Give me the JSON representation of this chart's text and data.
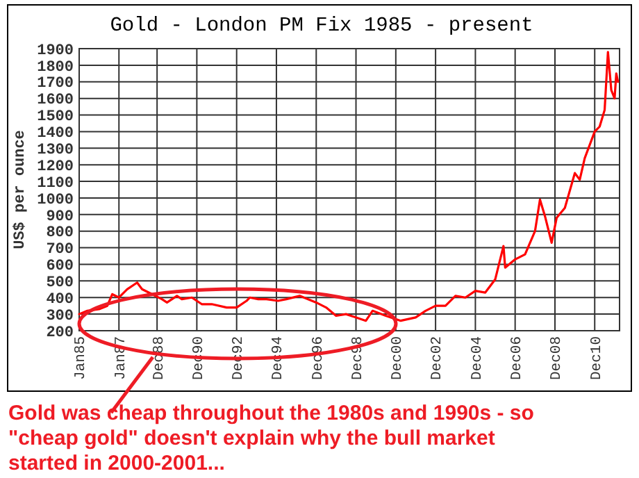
{
  "chart_data": {
    "type": "line",
    "title": "Gold - London PM Fix 1985 - present",
    "ylabel": "US$ per ounce",
    "annotations": [
      "Gold was cheap throughout the 1980s and 1990s - so \"cheap gold\" doesn't explain why the bull market started in 2000-2001..."
    ],
    "x": [
      "1985-01",
      "1985-06",
      "1986-01",
      "1986-06",
      "1986-09",
      "1987-01",
      "1987-06",
      "1987-12",
      "1988-03",
      "1988-09",
      "1989-03",
      "1989-06",
      "1989-12",
      "1990-03",
      "1990-09",
      "1991-03",
      "1991-09",
      "1992-06",
      "1992-12",
      "1993-06",
      "1993-08",
      "1994-01",
      "1994-06",
      "1995-01",
      "1995-06",
      "1996-02",
      "1996-12",
      "1997-06",
      "1997-12",
      "1998-06",
      "1999-06",
      "1999-10",
      "2000-06",
      "2001-03",
      "2001-12",
      "2002-06",
      "2002-12",
      "2003-06",
      "2003-12",
      "2004-06",
      "2004-12",
      "2005-06",
      "2005-12",
      "2006-05",
      "2006-06",
      "2006-12",
      "2007-06",
      "2007-12",
      "2008-03",
      "2008-06",
      "2008-10",
      "2009-01",
      "2009-06",
      "2009-12",
      "2010-03",
      "2010-06",
      "2010-12",
      "2011-03",
      "2011-06",
      "2011-08",
      "2011-10",
      "2011-12",
      "2012-01",
      "2012-02"
    ],
    "series": [
      {
        "color": "#ff0000",
        "values": [
          300,
          320,
          330,
          350,
          420,
          400,
          450,
          490,
          450,
          420,
          390,
          370,
          410,
          390,
          400,
          360,
          360,
          340,
          340,
          380,
          400,
          390,
          390,
          380,
          390,
          410,
          370,
          340,
          290,
          300,
          260,
          320,
          290,
          260,
          280,
          320,
          350,
          350,
          410,
          400,
          440,
          430,
          510,
          710,
          580,
          630,
          660,
          800,
          990,
          890,
          730,
          880,
          940,
          1150,
          1110,
          1240,
          1400,
          1430,
          1530,
          1880,
          1650,
          1600,
          1750,
          1700
        ]
      }
    ],
    "xlim": [
      "1985-01",
      "2012-03"
    ],
    "xticks": [
      {
        "value": "1985-01",
        "label": "Jan85"
      },
      {
        "value": "1987-01",
        "label": "Jan87"
      },
      {
        "value": "1988-12",
        "label": "Dec88"
      },
      {
        "value": "1990-12",
        "label": "Dec90"
      },
      {
        "value": "1992-12",
        "label": "Dec92"
      },
      {
        "value": "1994-12",
        "label": "Dec94"
      },
      {
        "value": "1996-12",
        "label": "Dec96"
      },
      {
        "value": "1998-12",
        "label": "Dec98"
      },
      {
        "value": "2000-12",
        "label": "Dec00"
      },
      {
        "value": "2002-12",
        "label": "Dec02"
      },
      {
        "value": "2004-12",
        "label": "Dec04"
      },
      {
        "value": "2006-12",
        "label": "Dec06"
      },
      {
        "value": "2008-12",
        "label": "Dec08"
      },
      {
        "value": "2010-12",
        "label": "Dec10"
      }
    ],
    "ylim": [
      200,
      1900
    ],
    "yticks": [
      200,
      300,
      400,
      500,
      600,
      700,
      800,
      900,
      1000,
      1100,
      1200,
      1300,
      1400,
      1500,
      1600,
      1700,
      1800,
      1900
    ],
    "grid": true,
    "line_style": "solid",
    "marker": "none"
  }
}
